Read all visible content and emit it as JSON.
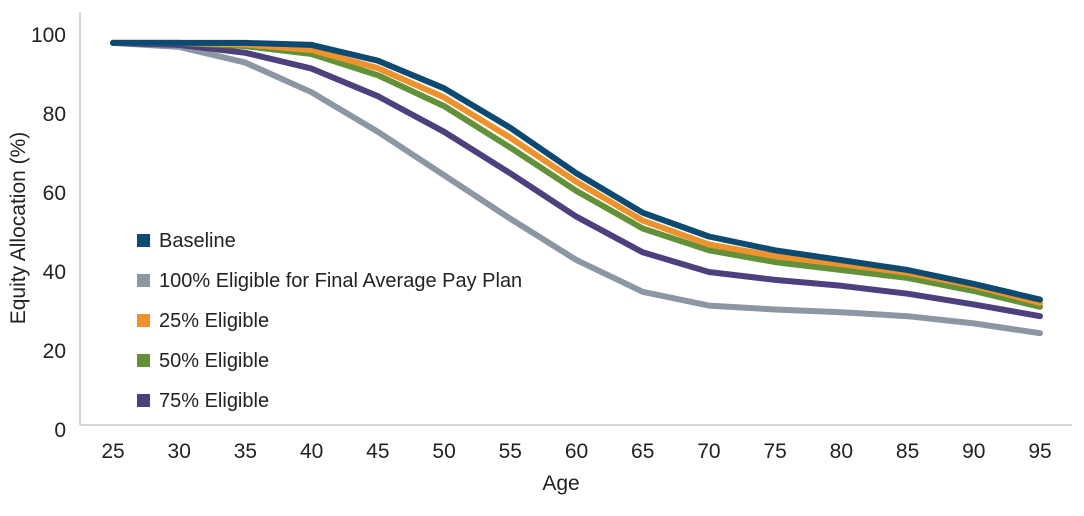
{
  "chart_data": {
    "type": "line",
    "title": "",
    "xlabel": "Age",
    "ylabel": "Equity Allocation (%)",
    "x": [
      "25",
      "30",
      "35",
      "40",
      "45",
      "50",
      "55",
      "60",
      "65",
      "70",
      "75",
      "80",
      "85",
      "90",
      "95"
    ],
    "yticks": [
      "0",
      "20",
      "40",
      "60",
      "80",
      "100"
    ],
    "ylim": [
      0,
      100
    ],
    "grid": false,
    "legend_position": "lower-left",
    "series": [
      {
        "name": "100% Eligible for Final Average Pay Plan",
        "color": "#8c97a3",
        "values": [
          98,
          97,
          93,
          85.5,
          75.5,
          64.5,
          53.5,
          43,
          35,
          31.5,
          30.5,
          29.8,
          28.8,
          27,
          24.5
        ]
      },
      {
        "name": "75% Eligible",
        "color": "#4e3f7f",
        "values": [
          98,
          97.5,
          95.5,
          91.5,
          84.5,
          75.5,
          65,
          54,
          45,
          40,
          38,
          36.5,
          34.5,
          31.8,
          28.8
        ]
      },
      {
        "name": "50% Eligible",
        "color": "#62913a",
        "values": [
          98,
          98,
          97.2,
          95.2,
          89.8,
          82,
          71.5,
          60.5,
          51,
          45.5,
          42.5,
          40.5,
          38.5,
          35.2,
          31.2
        ]
      },
      {
        "name": "25% Eligible",
        "color": "#f0922b",
        "values": [
          98,
          98,
          97.6,
          96.2,
          91.6,
          84.2,
          74,
          62.8,
          53,
          47,
          44,
          42,
          39.8,
          36.5,
          32.2
        ]
      },
      {
        "name": "Baseline",
        "color": "#0c4a71",
        "values": [
          98,
          98,
          98,
          97.5,
          93.5,
          86.5,
          76.5,
          65,
          55,
          49,
          45.5,
          43,
          40.5,
          37,
          33
        ]
      }
    ],
    "legend": [
      {
        "name": "Baseline",
        "color": "#0c4a71"
      },
      {
        "name": "100% Eligible for Final Average Pay Plan",
        "color": "#8c97a3"
      },
      {
        "name": "25% Eligible",
        "color": "#f0922b"
      },
      {
        "name": "50% Eligible",
        "color": "#62913a"
      },
      {
        "name": "75% Eligible",
        "color": "#4e3f7f"
      }
    ]
  }
}
